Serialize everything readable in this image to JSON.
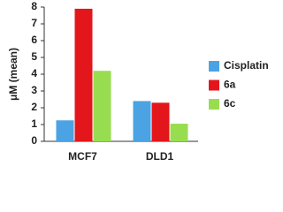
{
  "chart_data": {
    "type": "bar",
    "ylabel": "μM (mean)",
    "categories": [
      "MCF7",
      "DLD1"
    ],
    "series": [
      {
        "name": "Cisplatin",
        "color": "#4ba3e3",
        "values": [
          1.25,
          2.4
        ]
      },
      {
        "name": "6a",
        "color": "#e3161c",
        "values": [
          7.9,
          2.3
        ]
      },
      {
        "name": "6c",
        "color": "#98dd4f",
        "values": [
          4.2,
          1.05
        ]
      }
    ],
    "ylim": [
      0,
      8
    ],
    "yticks": [
      0,
      1,
      2,
      3,
      4,
      5,
      6,
      7,
      8
    ],
    "legend": "right"
  }
}
